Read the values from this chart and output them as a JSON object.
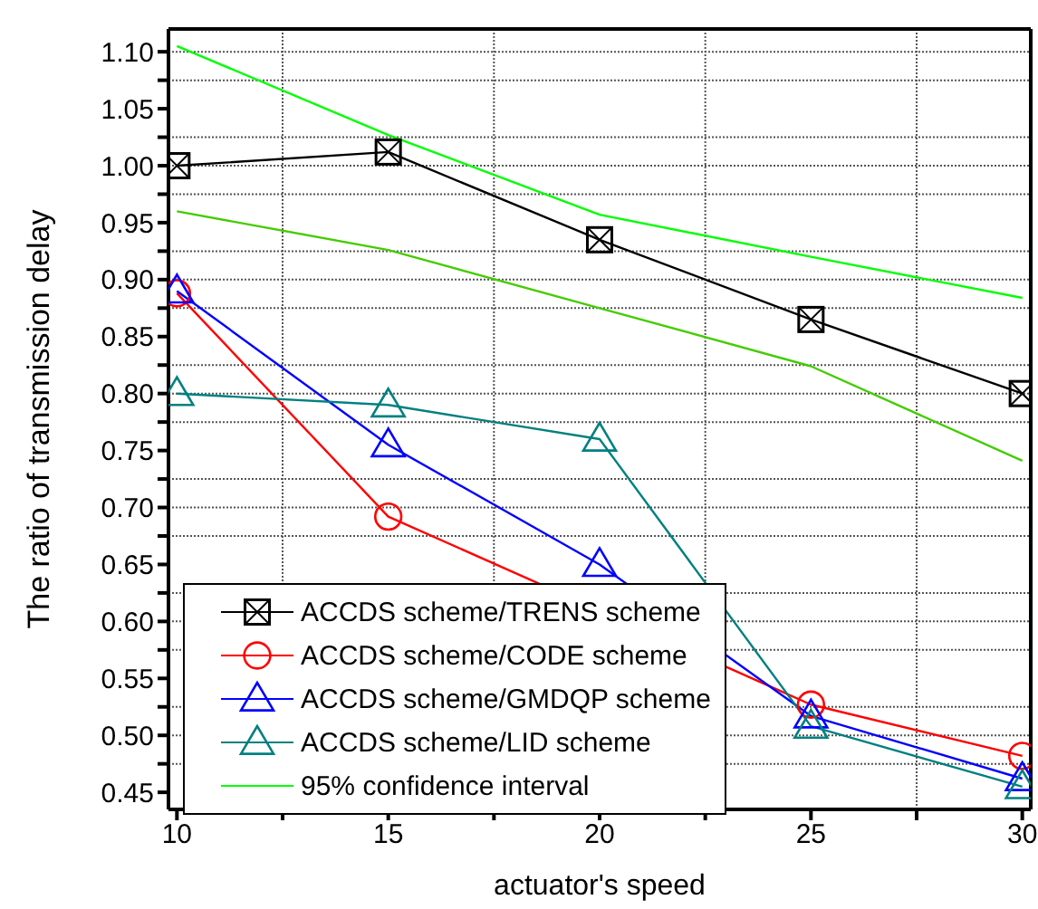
{
  "chart_data": {
    "type": "line",
    "xlabel": "actuator's speed",
    "ylabel": "The ratio of transmission delay",
    "x": [
      10,
      15,
      20,
      25,
      30
    ],
    "series": [
      {
        "name": "ACCDS scheme/TRENS scheme",
        "color": "#000000",
        "marker": "square",
        "values": [
          1.0,
          1.012,
          0.935,
          0.865,
          0.8
        ]
      },
      {
        "name": "ACCDS scheme/CODE scheme",
        "color": "#ff0000",
        "marker": "circle",
        "values": [
          0.888,
          0.692,
          null,
          0.527,
          0.482
        ]
      },
      {
        "name": "ACCDS scheme/GMDQP scheme",
        "color": "#0000ff",
        "marker": "triangle",
        "values": [
          0.89,
          0.755,
          0.65,
          0.517,
          0.462
        ]
      },
      {
        "name": "ACCDS scheme/LID scheme",
        "color": "#008080",
        "marker": "triangle",
        "values": [
          0.8,
          0.79,
          0.76,
          0.508,
          0.455
        ]
      },
      {
        "name": "95% confidence interval",
        "color": "#00ff00",
        "marker": "none",
        "values": [
          1.105,
          1.027,
          0.957,
          0.92,
          0.884
        ]
      },
      {
        "color": "#44cc00",
        "marker": "none",
        "values": [
          0.96,
          0.926,
          0.875,
          0.824,
          0.741
        ]
      }
    ],
    "xlim": [
      9.8,
      30.2
    ],
    "xticks": [
      10,
      {
        "value": 12.5,
        "label": null
      },
      15,
      {
        "value": 17.5,
        "label": null
      },
      20,
      {
        "value": 22.5,
        "label": null
      },
      25,
      {
        "value": 27.5,
        "label": null
      },
      30
    ],
    "ylim": [
      0.435,
      1.12
    ],
    "yticks": [
      0.45,
      {
        "value": 0.475,
        "label": null
      },
      {
        "value": 0.5,
        "label": "0.50"
      },
      {
        "value": 0.525,
        "label": null
      },
      0.55,
      {
        "value": 0.575,
        "label": null
      },
      {
        "value": 0.6,
        "label": "0.60"
      },
      {
        "value": 0.625,
        "label": null
      },
      0.65,
      {
        "value": 0.675,
        "label": null
      },
      {
        "value": 0.7,
        "label": "0.70"
      },
      {
        "value": 0.725,
        "label": null
      },
      0.75,
      {
        "value": 0.775,
        "label": null
      },
      {
        "value": 0.8,
        "label": "0.80"
      },
      {
        "value": 0.825,
        "label": null
      },
      0.85,
      {
        "value": 0.875,
        "label": null
      },
      {
        "value": 0.9,
        "label": "0.90"
      },
      {
        "value": 0.925,
        "label": null
      },
      0.95,
      {
        "value": 0.975,
        "label": null
      },
      {
        "value": 1.0,
        "label": "1.00"
      },
      {
        "value": 1.025,
        "label": null
      },
      1.05,
      {
        "value": 1.075,
        "label": null
      },
      {
        "value": 1.1,
        "label": "1.10"
      }
    ],
    "grid": true,
    "legend": "bottom left"
  }
}
